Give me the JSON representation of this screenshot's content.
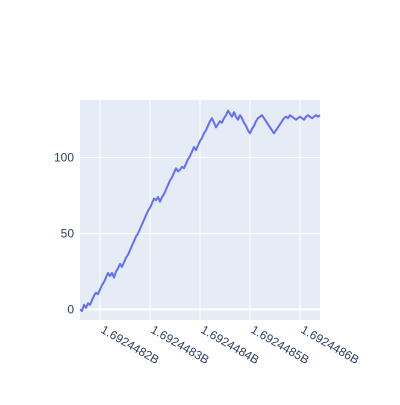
{
  "chart_data": {
    "type": "line",
    "title": "",
    "xlabel": "",
    "ylabel": "",
    "xlim": [
      1692448160,
      1692448640
    ],
    "ylim": [
      -7,
      138
    ],
    "xticks": [
      {
        "value": 1692448200,
        "label": "1.6924482B"
      },
      {
        "value": 1692448300,
        "label": "1.6924483B"
      },
      {
        "value": 1692448400,
        "label": "1.6924484B"
      },
      {
        "value": 1692448500,
        "label": "1.6924485B"
      },
      {
        "value": 1692448600,
        "label": "1.6924486B"
      }
    ],
    "yticks": [
      {
        "value": 0,
        "label": "0"
      },
      {
        "value": 50,
        "label": "50"
      },
      {
        "value": 100,
        "label": "100"
      }
    ],
    "grid": true,
    "line_color": "#636efa",
    "plot_bg": "#e5ecf6",
    "series": [
      {
        "x": [
          1692448160,
          1692448164,
          1692448168,
          1692448172,
          1692448176,
          1692448180,
          1692448184,
          1692448188,
          1692448192,
          1692448196,
          1692448200,
          1692448204,
          1692448208,
          1692448212,
          1692448216,
          1692448220,
          1692448224,
          1692448228,
          1692448232,
          1692448236,
          1692448240,
          1692448244,
          1692448248,
          1692448252,
          1692448256,
          1692448260,
          1692448264,
          1692448268,
          1692448272,
          1692448276,
          1692448280,
          1692448284,
          1692448288,
          1692448292,
          1692448296,
          1692448300,
          1692448304,
          1692448308,
          1692448312,
          1692448316,
          1692448320,
          1692448324,
          1692448328,
          1692448332,
          1692448336,
          1692448340,
          1692448344,
          1692448348,
          1692448352,
          1692448356,
          1692448360,
          1692448364,
          1692448368,
          1692448372,
          1692448376,
          1692448380,
          1692448384,
          1692448388,
          1692448392,
          1692448396,
          1692448400,
          1692448404,
          1692448408,
          1692448412,
          1692448416,
          1692448420,
          1692448424,
          1692448428,
          1692448432,
          1692448436,
          1692448440,
          1692448444,
          1692448448,
          1692448452,
          1692448456,
          1692448460,
          1692448464,
          1692448468,
          1692448472,
          1692448476,
          1692448480,
          1692448484,
          1692448488,
          1692448492,
          1692448496,
          1692448500,
          1692448504,
          1692448508,
          1692448512,
          1692448516,
          1692448520,
          1692448524,
          1692448528,
          1692448532,
          1692448536,
          1692448540,
          1692448544,
          1692448548,
          1692448552,
          1692448556,
          1692448560,
          1692448564,
          1692448568,
          1692448572,
          1692448576,
          1692448580,
          1692448584,
          1692448588,
          1692448592,
          1692448596,
          1692448600,
          1692448604,
          1692448608,
          1692448612,
          1692448616,
          1692448620,
          1692448624,
          1692448628,
          1692448632,
          1692448636,
          1692448640
        ],
        "y": [
          0,
          -1,
          3,
          1,
          4,
          3,
          6,
          9,
          11,
          10,
          13,
          16,
          18,
          21,
          24,
          22,
          24,
          21,
          25,
          27,
          30,
          28,
          31,
          34,
          36,
          39,
          42,
          45,
          48,
          50,
          53,
          56,
          59,
          62,
          65,
          67,
          70,
          73,
          72,
          74,
          71,
          74,
          76,
          79,
          82,
          85,
          87,
          90,
          93,
          91,
          92,
          94,
          93,
          96,
          99,
          101,
          104,
          107,
          105,
          108,
          111,
          113,
          116,
          118,
          121,
          124,
          126,
          123,
          120,
          122,
          124,
          123,
          126,
          128,
          131,
          129,
          127,
          130,
          127,
          125,
          128,
          126,
          123,
          121,
          118,
          116,
          119,
          121,
          124,
          126,
          127,
          128,
          126,
          124,
          122,
          120,
          118,
          116,
          118,
          120,
          122,
          124,
          126,
          127,
          126,
          128,
          127,
          126,
          125,
          126,
          127,
          126,
          125,
          127,
          128,
          127,
          126,
          127,
          128,
          127,
          128
        ]
      }
    ]
  }
}
